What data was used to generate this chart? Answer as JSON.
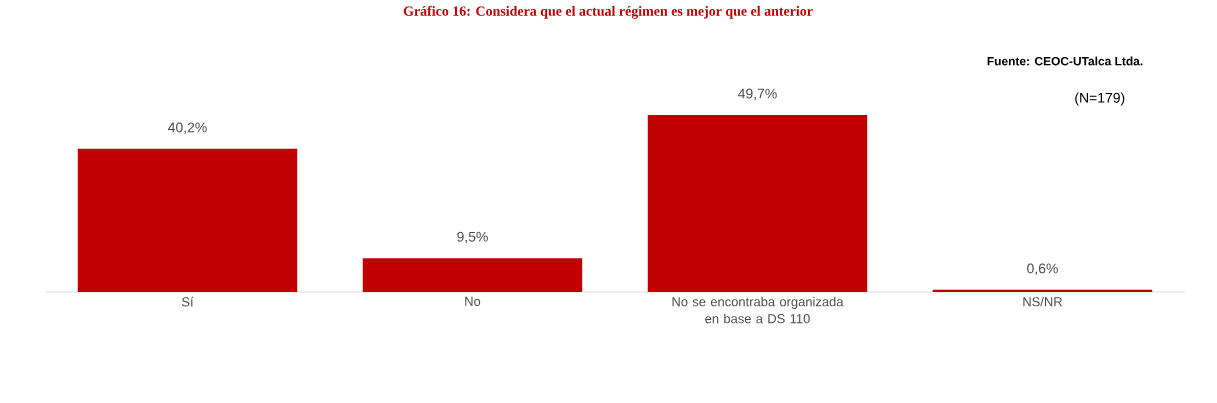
{
  "chart_data": {
    "type": "bar",
    "title": "Gráfico 16: Considera que el actual régimen es mejor que el anterior",
    "categories": [
      "Sí",
      "No",
      "No se encontraba organizada en base a DS 110",
      "NS/NR"
    ],
    "values": [
      40.2,
      9.5,
      49.7,
      0.6
    ],
    "value_labels": [
      "40,2%",
      "9,5%",
      "49,7%",
      "0,6%"
    ],
    "color": "#c00000",
    "annotations": [
      "Fuente: CEOC-UTalca Ltda.",
      "(N=179)"
    ]
  }
}
